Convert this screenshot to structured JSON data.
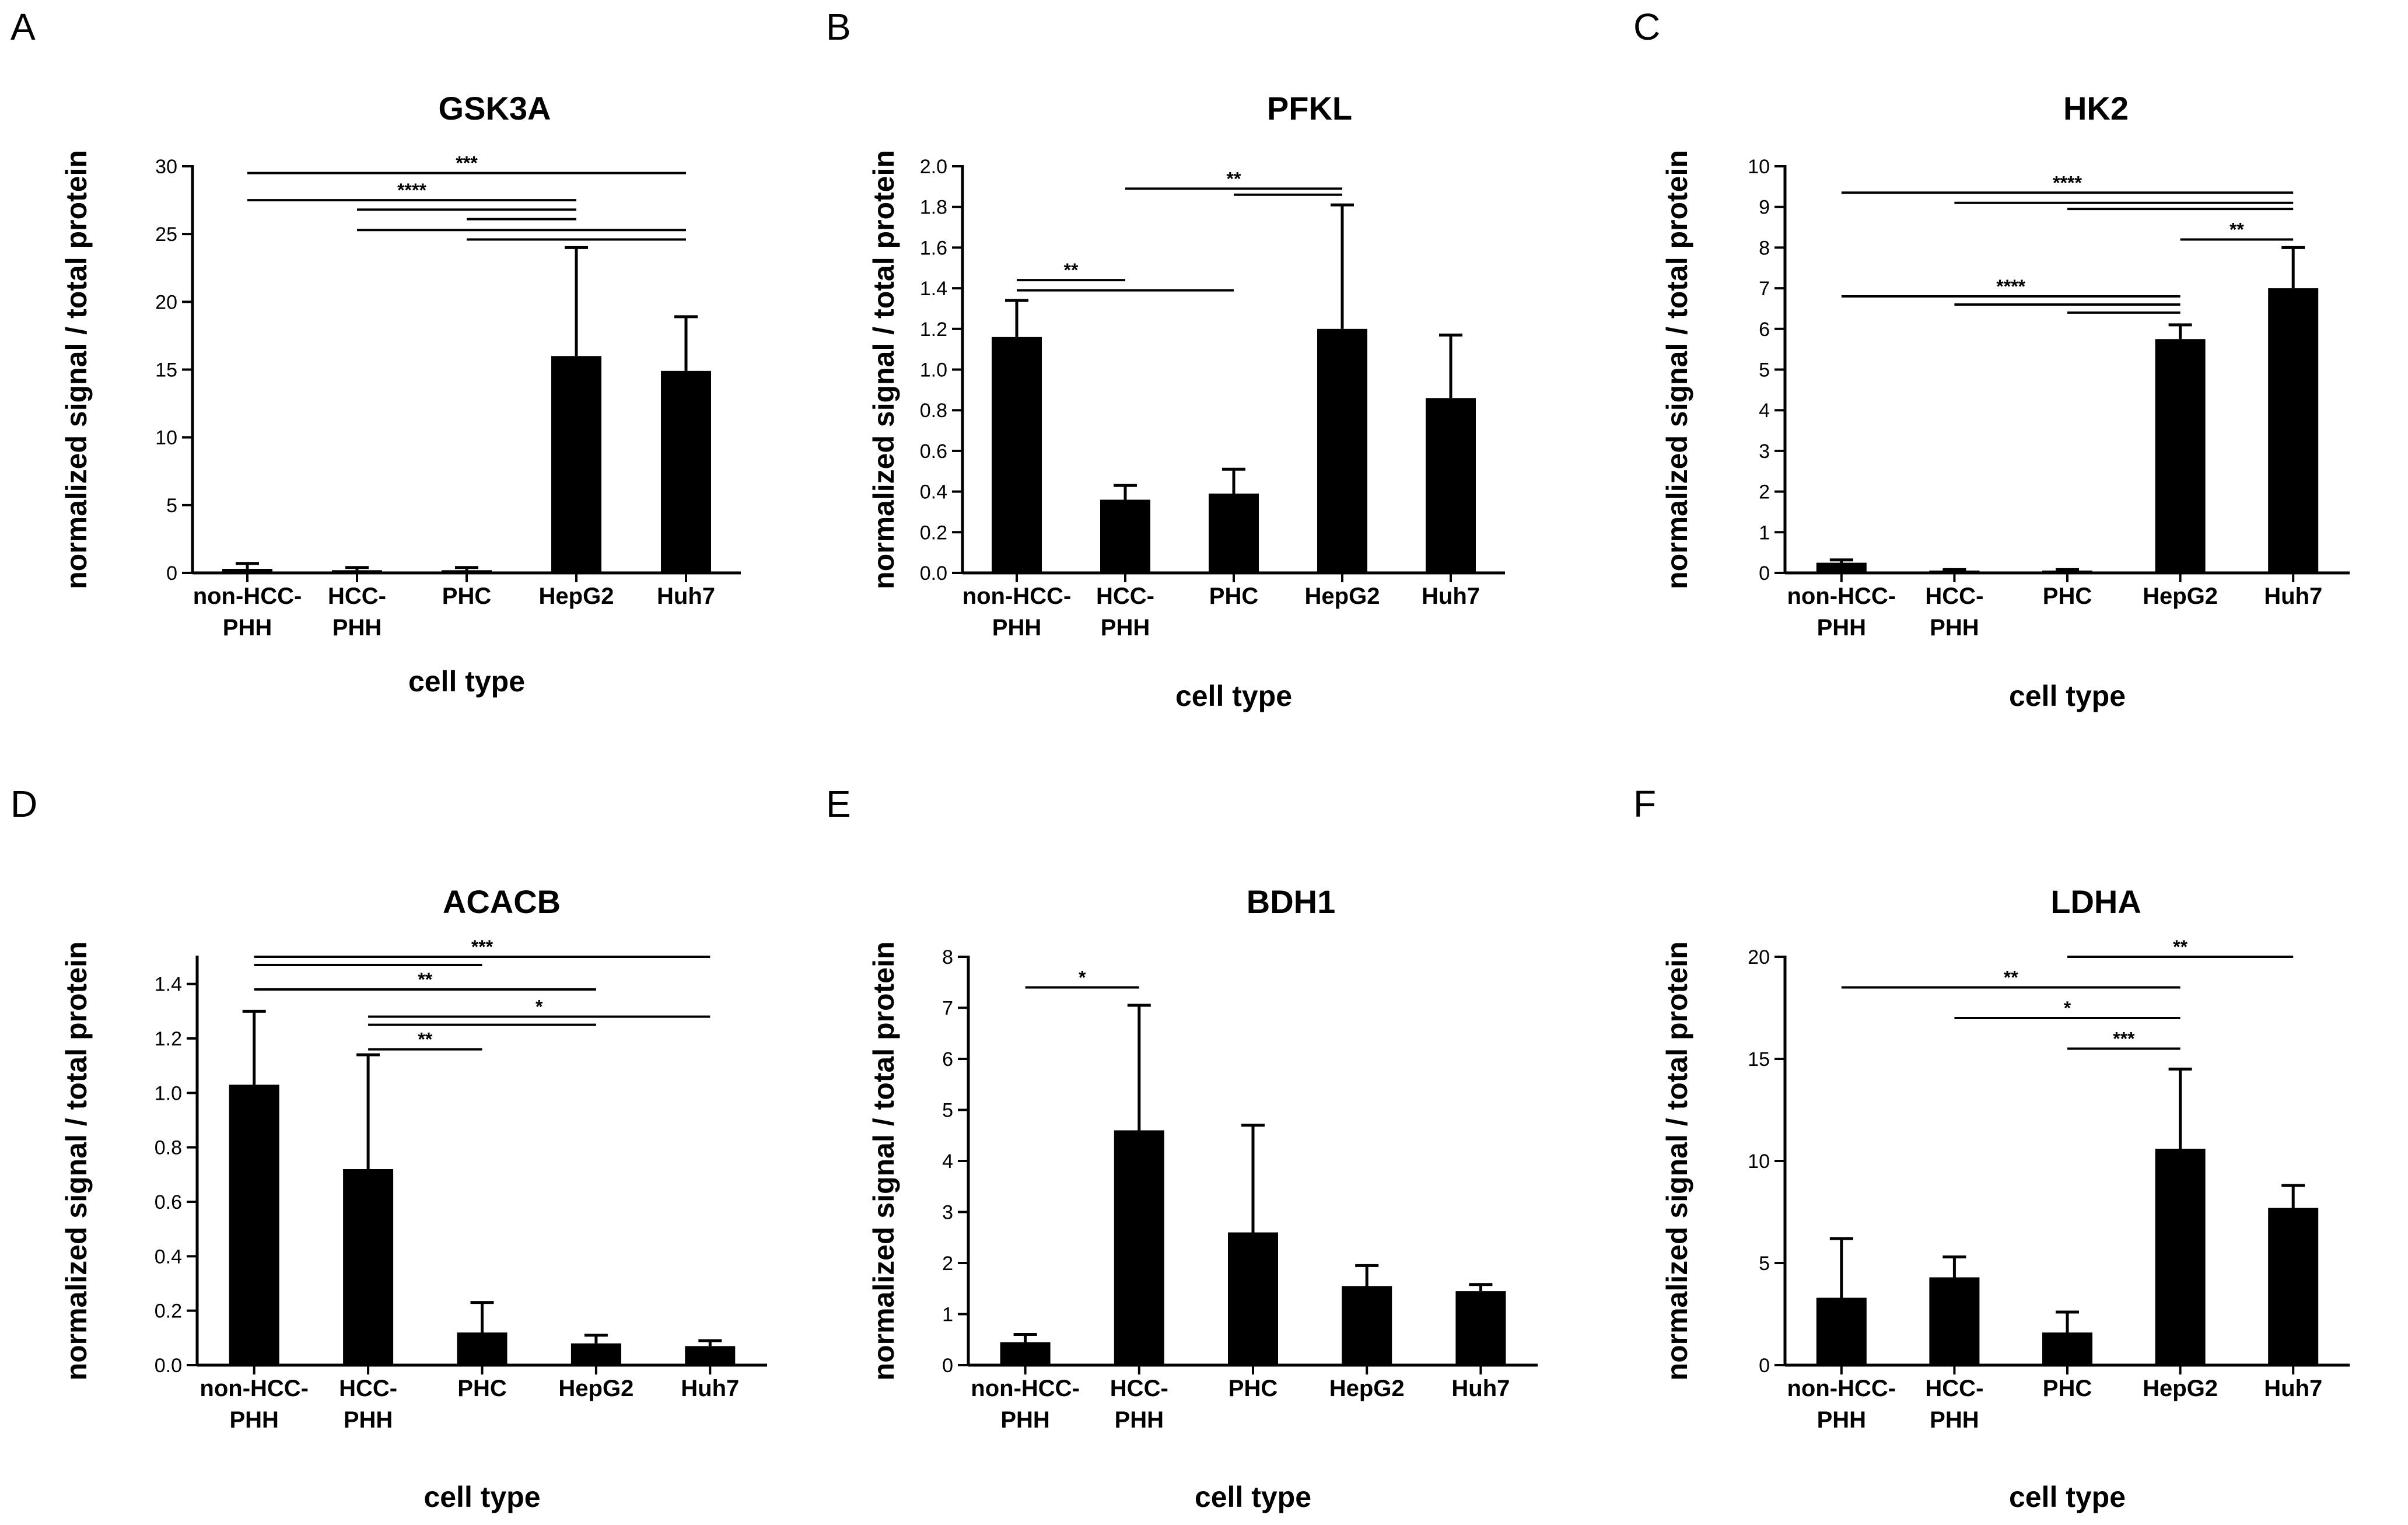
{
  "figure": {
    "colors": {
      "bar": "#000000",
      "axis": "#000000",
      "background": "#ffffff"
    }
  },
  "chart_data": [
    {
      "panel": "A",
      "type": "bar",
      "title": "GSK3A",
      "xlabel": "cell type",
      "ylabel": "normalized signal / total protein",
      "categories": [
        [
          "non-HCC-",
          "PHH"
        ],
        [
          "HCC-",
          "PHH"
        ],
        [
          "PHC"
        ],
        [
          "HepG2"
        ],
        [
          "Huh7"
        ]
      ],
      "values": [
        0.3,
        0.2,
        0.2,
        16.0,
        14.9
      ],
      "errors": [
        0.4,
        0.2,
        0.2,
        8.0,
        4.0
      ],
      "ylim": [
        0,
        30
      ],
      "yticks": [
        0,
        5,
        10,
        15,
        20,
        25,
        30
      ],
      "ytick_labels": [
        "0",
        "5",
        "10",
        "15",
        "20",
        "25",
        "30"
      ],
      "significance": [
        {
          "from": 0,
          "to": 4,
          "level": 29.5,
          "label": "***"
        },
        {
          "from": 0,
          "to": 3,
          "level": 27.5,
          "label": "****"
        },
        {
          "from": 1,
          "to": 3,
          "level": 26.8,
          "label": ""
        },
        {
          "from": 1,
          "to": 4,
          "level": 25.3,
          "label": ""
        },
        {
          "from": 2,
          "to": 3,
          "level": 26.1,
          "label": ""
        },
        {
          "from": 2,
          "to": 4,
          "level": 24.6,
          "label": ""
        }
      ]
    },
    {
      "panel": "B",
      "type": "bar",
      "title": "PFKL",
      "xlabel": "cell type",
      "ylabel": "normalized signal / total protein",
      "categories": [
        [
          "non-HCC-",
          "PHH"
        ],
        [
          "HCC-",
          "PHH"
        ],
        [
          "PHC"
        ],
        [
          "HepG2"
        ],
        [
          "Huh7"
        ]
      ],
      "values": [
        1.16,
        0.36,
        0.39,
        1.2,
        0.86
      ],
      "errors": [
        0.18,
        0.07,
        0.12,
        0.61,
        0.31
      ],
      "ylim": [
        0,
        2.0
      ],
      "yticks": [
        0,
        0.2,
        0.4,
        0.6,
        0.8,
        1.0,
        1.2,
        1.4,
        1.6,
        1.8,
        2.0
      ],
      "ytick_labels": [
        "0.0",
        "0.2",
        "0.4",
        "0.6",
        "0.8",
        "1.0",
        "1.2",
        "1.4",
        "1.6",
        "1.8",
        "2.0"
      ],
      "significance": [
        {
          "from": 0,
          "to": 1,
          "level": 1.44,
          "label": "**"
        },
        {
          "from": 0,
          "to": 2,
          "level": 1.39,
          "label": ""
        },
        {
          "from": 1,
          "to": 3,
          "level": 1.89,
          "label": "**"
        },
        {
          "from": 2,
          "to": 3,
          "level": 1.86,
          "label": ""
        }
      ]
    },
    {
      "panel": "C",
      "type": "bar",
      "title": "HK2",
      "xlabel": "cell type",
      "ylabel": "normalized signal / total protein",
      "categories": [
        [
          "non-HCC-",
          "PHH"
        ],
        [
          "HCC-",
          "PHH"
        ],
        [
          "PHC"
        ],
        [
          "HepG2"
        ],
        [
          "Huh7"
        ]
      ],
      "values": [
        0.25,
        0.05,
        0.05,
        5.75,
        7.0
      ],
      "errors": [
        0.07,
        0.03,
        0.03,
        0.35,
        1.0
      ],
      "ylim": [
        0,
        10
      ],
      "yticks": [
        0,
        1,
        2,
        3,
        4,
        5,
        6,
        7,
        8,
        9,
        10
      ],
      "ytick_labels": [
        "0",
        "1",
        "2",
        "3",
        "4",
        "5",
        "6",
        "7",
        "8",
        "9",
        "10"
      ],
      "significance": [
        {
          "from": 0,
          "to": 4,
          "level": 9.35,
          "label": "****"
        },
        {
          "from": 1,
          "to": 4,
          "level": 9.1,
          "label": ""
        },
        {
          "from": 2,
          "to": 4,
          "level": 8.95,
          "label": ""
        },
        {
          "from": 3,
          "to": 4,
          "level": 8.2,
          "label": "**"
        },
        {
          "from": 0,
          "to": 3,
          "level": 6.8,
          "label": "****"
        },
        {
          "from": 1,
          "to": 3,
          "level": 6.6,
          "label": ""
        },
        {
          "from": 2,
          "to": 3,
          "level": 6.4,
          "label": ""
        }
      ]
    },
    {
      "panel": "D",
      "type": "bar",
      "title": "ACACB",
      "xlabel": "cell type",
      "ylabel": "normalized signal / total protein",
      "categories": [
        [
          "non-HCC-",
          "PHH"
        ],
        [
          "HCC-",
          "PHH"
        ],
        [
          "PHC"
        ],
        [
          "HepG2"
        ],
        [
          "Huh7"
        ]
      ],
      "values": [
        1.03,
        0.72,
        0.12,
        0.08,
        0.07
      ],
      "errors": [
        0.27,
        0.42,
        0.11,
        0.03,
        0.02
      ],
      "ylim": [
        0,
        1.5
      ],
      "yticks": [
        0,
        0.2,
        0.4,
        0.6,
        0.8,
        1.0,
        1.2,
        1.4
      ],
      "ytick_labels": [
        "0.0",
        "0.2",
        "0.4",
        "0.6",
        "0.8",
        "1.0",
        "1.2",
        "1.4"
      ],
      "significance": [
        {
          "from": 0,
          "to": 4,
          "level": 1.5,
          "label": "***"
        },
        {
          "from": 0,
          "to": 2,
          "level": 1.47,
          "label": ""
        },
        {
          "from": 0,
          "to": 3,
          "level": 1.38,
          "label": "**"
        },
        {
          "from": 1,
          "to": 4,
          "level": 1.28,
          "label": "*"
        },
        {
          "from": 1,
          "to": 3,
          "level": 1.25,
          "label": ""
        },
        {
          "from": 1,
          "to": 2,
          "level": 1.16,
          "label": "**"
        }
      ]
    },
    {
      "panel": "E",
      "type": "bar",
      "title": "BDH1",
      "xlabel": "cell type",
      "ylabel": "normalized signal / total protein",
      "categories": [
        [
          "non-HCC-",
          "PHH"
        ],
        [
          "HCC-",
          "PHH"
        ],
        [
          "PHC"
        ],
        [
          "HepG2"
        ],
        [
          "Huh7"
        ]
      ],
      "values": [
        0.45,
        4.6,
        2.6,
        1.55,
        1.45
      ],
      "errors": [
        0.15,
        2.45,
        2.1,
        0.4,
        0.13
      ],
      "ylim": [
        0,
        8
      ],
      "yticks": [
        0,
        1,
        2,
        3,
        4,
        5,
        6,
        7,
        8
      ],
      "ytick_labels": [
        "0",
        "1",
        "2",
        "3",
        "4",
        "5",
        "6",
        "7",
        "8"
      ],
      "significance": [
        {
          "from": 0,
          "to": 1,
          "level": 7.4,
          "label": "*"
        }
      ]
    },
    {
      "panel": "F",
      "type": "bar",
      "title": "LDHA",
      "xlabel": "cell type",
      "ylabel": "normalized signal / total protein",
      "categories": [
        [
          "non-HCC-",
          "PHH"
        ],
        [
          "HCC-",
          "PHH"
        ],
        [
          "PHC"
        ],
        [
          "HepG2"
        ],
        [
          "Huh7"
        ]
      ],
      "values": [
        3.3,
        4.3,
        1.6,
        10.6,
        7.7
      ],
      "errors": [
        2.9,
        1.0,
        1.0,
        3.9,
        1.1
      ],
      "ylim": [
        0,
        20
      ],
      "yticks": [
        0,
        5,
        10,
        15,
        20
      ],
      "ytick_labels": [
        "0",
        "5",
        "10",
        "15",
        "20"
      ],
      "significance": [
        {
          "from": 2,
          "to": 4,
          "level": 20.0,
          "label": "**"
        },
        {
          "from": 0,
          "to": 3,
          "level": 18.5,
          "label": "**"
        },
        {
          "from": 1,
          "to": 3,
          "level": 17.0,
          "label": "*"
        },
        {
          "from": 2,
          "to": 3,
          "level": 15.5,
          "label": "***"
        }
      ]
    }
  ]
}
